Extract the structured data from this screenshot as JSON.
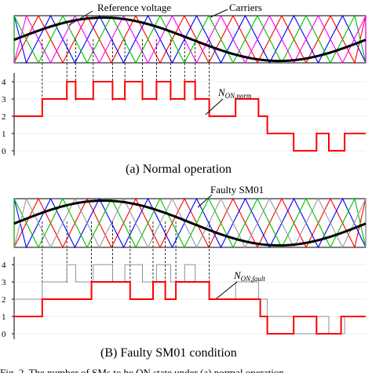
{
  "figure": {
    "panel_a": {
      "label_reference": "Reference voltage",
      "label_carriers": "Carriers",
      "label_n_main": "N",
      "label_n_sub": "ON,norm",
      "caption": "(a) Normal operation",
      "y_ticks": [
        "4",
        "3",
        "2",
        "1",
        "0"
      ]
    },
    "panel_b": {
      "label_faulty": "Faulty SM01",
      "label_n_main": "N",
      "label_n_sub": "ON,fault",
      "caption": "(B) Faulty SM01 condition",
      "y_ticks": [
        "4",
        "3",
        "2",
        "1",
        "0"
      ]
    },
    "bottom_caption": "Fig. 2.  The number of SMs to be ON state under (a) normal operation"
  },
  "colors": {
    "reference": "#000000",
    "carriers": [
      "#ff0000",
      "#0000ff",
      "#00c000",
      "#ff00ff"
    ],
    "faulty_carrier": "#9a9a9a",
    "step_normal": "#ff0000",
    "step_fault": "#ff0000",
    "step_ghost": "#909090"
  },
  "chart_data": [
    {
      "type": "line",
      "title": "(a) Normal operation",
      "series": [
        {
          "name": "Reference voltage"
        },
        {
          "name": "Carriers"
        }
      ]
    },
    {
      "type": "line",
      "title": "(a) Normal operation",
      "ylabel": "N_ON,norm",
      "ylim": [
        0,
        4
      ],
      "steps": [
        {
          "x0": 0,
          "x1": 0.08,
          "y": 2
        },
        {
          "x0": 0.08,
          "x1": 0.15,
          "y": 3
        },
        {
          "x0": 0.15,
          "x1": 0.175,
          "y": 4
        },
        {
          "x0": 0.175,
          "x1": 0.225,
          "y": 3
        },
        {
          "x0": 0.225,
          "x1": 0.28,
          "y": 4
        },
        {
          "x0": 0.28,
          "x1": 0.315,
          "y": 3
        },
        {
          "x0": 0.315,
          "x1": 0.365,
          "y": 4
        },
        {
          "x0": 0.365,
          "x1": 0.405,
          "y": 3
        },
        {
          "x0": 0.405,
          "x1": 0.445,
          "y": 4
        },
        {
          "x0": 0.445,
          "x1": 0.485,
          "y": 3
        },
        {
          "x0": 0.485,
          "x1": 0.515,
          "y": 4
        },
        {
          "x0": 0.515,
          "x1": 0.555,
          "y": 3
        },
        {
          "x0": 0.555,
          "x1": 0.63,
          "y": 2
        },
        {
          "x0": 0.63,
          "x1": 0.695,
          "y": 3
        },
        {
          "x0": 0.695,
          "x1": 0.72,
          "y": 2
        },
        {
          "x0": 0.72,
          "x1": 0.795,
          "y": 1
        },
        {
          "x0": 0.795,
          "x1": 0.86,
          "y": 0
        },
        {
          "x0": 0.86,
          "x1": 0.895,
          "y": 1
        },
        {
          "x0": 0.895,
          "x1": 0.94,
          "y": 0
        },
        {
          "x0": 0.94,
          "x1": 1.0,
          "y": 1
        }
      ]
    },
    {
      "type": "line",
      "title": "(B) Faulty SM01 condition",
      "series": [
        {
          "name": "Faulty SM01"
        }
      ]
    },
    {
      "type": "line",
      "title": "(B) Faulty SM01 condition",
      "ylabel": "N_ON,fault",
      "ylim": [
        0,
        4
      ],
      "steps": [
        {
          "x0": 0,
          "x1": 0.08,
          "y": 1
        },
        {
          "x0": 0.08,
          "x1": 0.22,
          "y": 2
        },
        {
          "x0": 0.22,
          "x1": 0.33,
          "y": 3
        },
        {
          "x0": 0.33,
          "x1": 0.395,
          "y": 2
        },
        {
          "x0": 0.395,
          "x1": 0.43,
          "y": 3
        },
        {
          "x0": 0.43,
          "x1": 0.46,
          "y": 2
        },
        {
          "x0": 0.46,
          "x1": 0.555,
          "y": 3
        },
        {
          "x0": 0.555,
          "x1": 0.63,
          "y": 2
        },
        {
          "x0": 0.63,
          "x1": 0.7,
          "y": 2
        },
        {
          "x0": 0.7,
          "x1": 0.72,
          "y": 1
        },
        {
          "x0": 0.72,
          "x1": 0.795,
          "y": 0
        },
        {
          "x0": 0.795,
          "x1": 0.86,
          "y": 1
        },
        {
          "x0": 0.86,
          "x1": 0.93,
          "y": 0
        },
        {
          "x0": 0.93,
          "x1": 1.0,
          "y": 1
        }
      ]
    }
  ]
}
